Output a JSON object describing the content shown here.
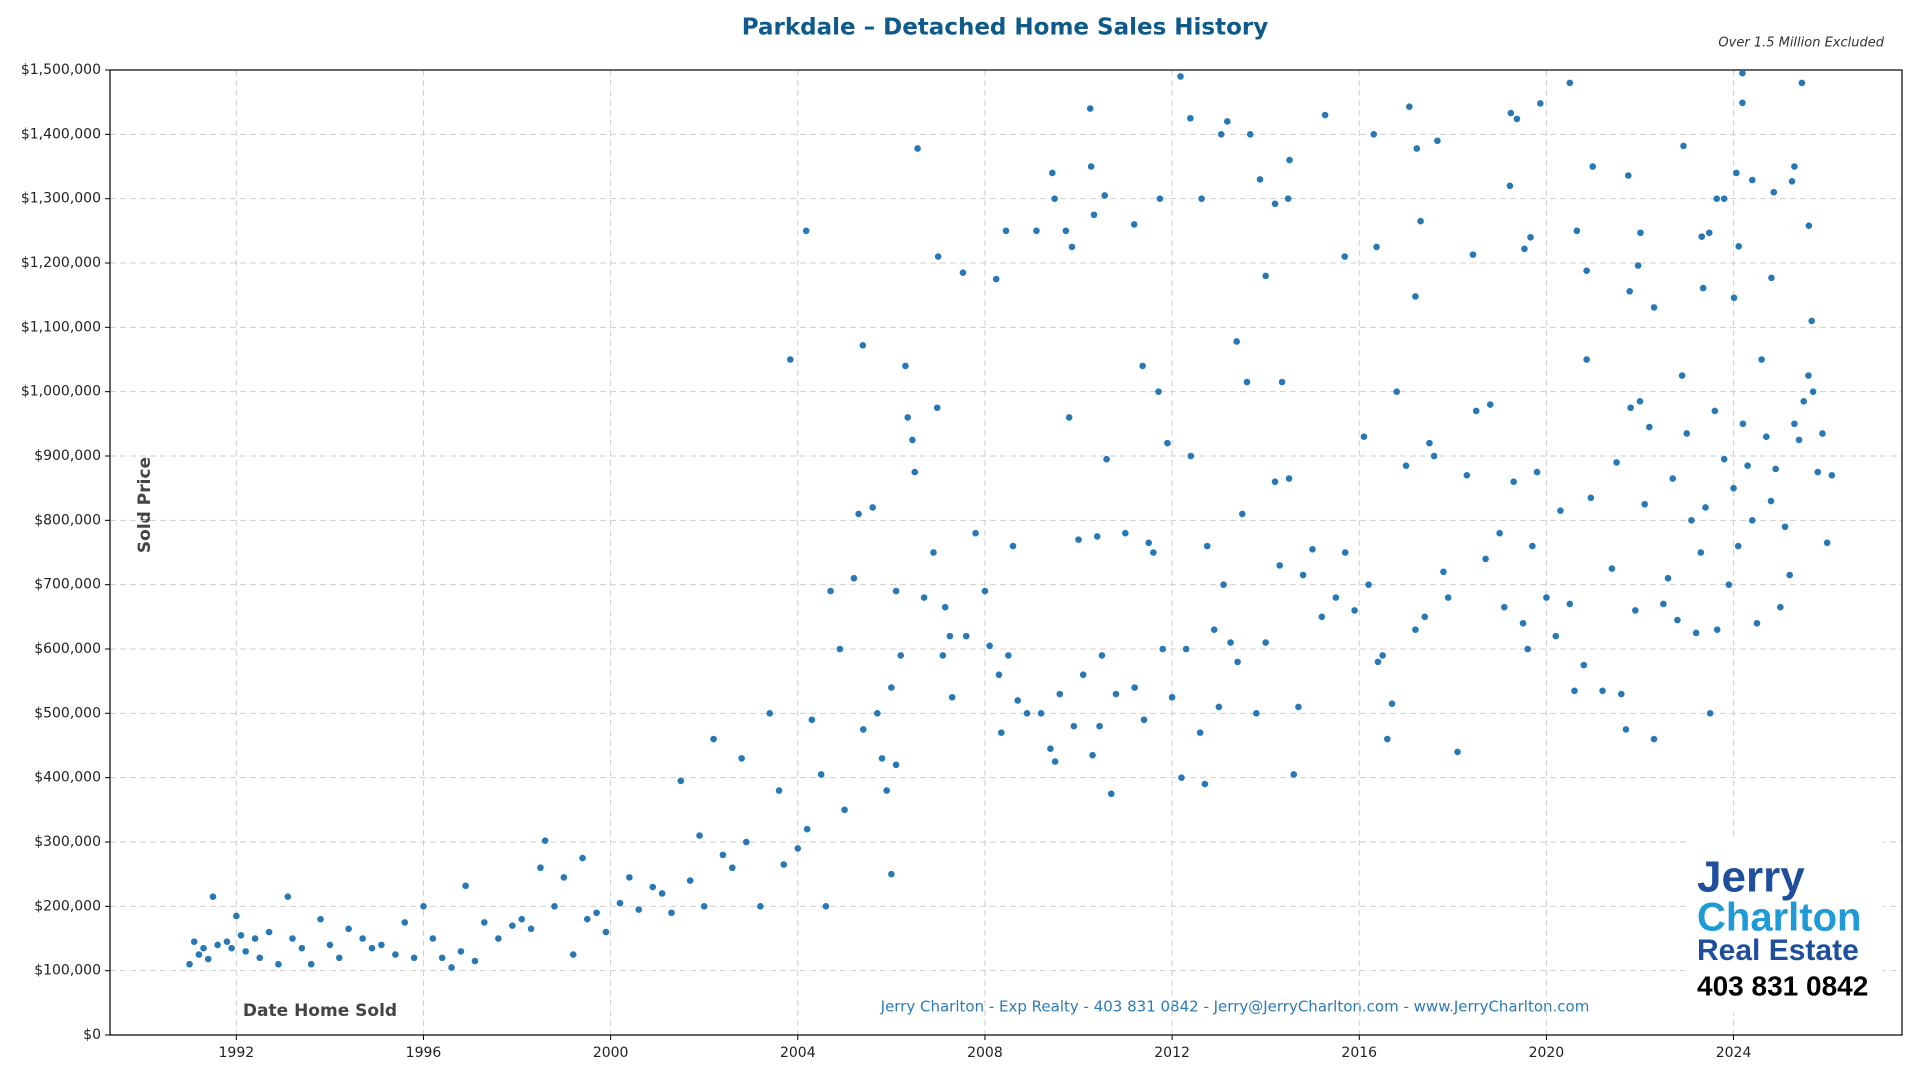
{
  "chart_data": {
    "type": "scatter",
    "title": "Parkdale – Detached Home Sales History",
    "subtitle": "Over 1.5 Million Excluded",
    "ylabel": "Sold Price",
    "xlabel": "Date Home Sold",
    "footer": "Jerry Charlton - Exp Realty - 403 831 0842 - Jerry@JerryCharlton.com - www.JerryCharlton.com",
    "logo": [
      "Jerry",
      "Charlton",
      "Real Estate",
      "403 831 0842"
    ],
    "color": "#2878b5",
    "grid": true,
    "xlim": [
      1989.3,
      2027.6
    ],
    "xticks": [
      1992,
      1996,
      2000,
      2004,
      2008,
      2012,
      2016,
      2020,
      2024
    ],
    "ylim": [
      0,
      1500000
    ],
    "yticks": [
      {
        "value": 0,
        "label": "$0"
      },
      {
        "value": 100000,
        "label": "$100,000"
      },
      {
        "value": 200000,
        "label": "$200,000"
      },
      {
        "value": 300000,
        "label": "$300,000"
      },
      {
        "value": 400000,
        "label": "$400,000"
      },
      {
        "value": 500000,
        "label": "$500,000"
      },
      {
        "value": 600000,
        "label": "$600,000"
      },
      {
        "value": 700000,
        "label": "$700,000"
      },
      {
        "value": 800000,
        "label": "$800,000"
      },
      {
        "value": 900000,
        "label": "$900,000"
      },
      {
        "value": 1000000,
        "label": "$1,000,000"
      },
      {
        "value": 1100000,
        "label": "$1,100,000"
      },
      {
        "value": 1200000,
        "label": "$1,200,000"
      },
      {
        "value": 1300000,
        "label": "$1,300,000"
      },
      {
        "value": 1400000,
        "label": "$1,400,000"
      },
      {
        "value": 1500000,
        "label": "$1,500,000"
      }
    ],
    "x": [
      1991.0,
      1991.1,
      1991.2,
      1991.3,
      1991.4,
      1991.5,
      1991.6,
      1991.8,
      1991.9,
      1992.0,
      1992.1,
      1992.2,
      1992.4,
      1992.5,
      1992.7,
      1992.9,
      1993.1,
      1993.2,
      1993.4,
      1993.6,
      1993.8,
      1994.0,
      1994.2,
      1994.4,
      1994.7,
      1994.9,
      1995.1,
      1995.4,
      1995.6,
      1995.8,
      1996.0,
      1996.2,
      1996.4,
      1996.6,
      1996.8,
      1996.9,
      1997.1,
      1997.3,
      1997.6,
      1997.9,
      1998.1,
      1998.3,
      1998.5,
      1998.6,
      1998.8,
      1999.0,
      1999.2,
      1999.4,
      1999.5,
      1999.7,
      1999.9,
      2000.2,
      2000.4,
      2000.6,
      2000.9,
      2001.1,
      2001.3,
      2001.5,
      2001.7,
      2001.9,
      2002.0,
      2002.2,
      2002.4,
      2002.6,
      2002.8,
      2002.9,
      2003.2,
      2003.4,
      2003.6,
      2003.7,
      2004.0,
      2004.2,
      2004.3,
      2004.5,
      2004.6,
      2004.7,
      2004.9,
      2005.0,
      2005.2,
      2005.4,
      2005.8,
      2005.9,
      2006.0,
      2006.1,
      2003.84,
      2004.18,
      2005.39,
      2006.3,
      2006.56,
      2007.0,
      2006.98,
      2007.53,
      2008.24,
      2008.45,
      2009.1,
      2009.44,
      2009.49,
      2009.73,
      2009.86,
      2010.25,
      2010.27,
      2010.56,
      2010.33,
      2011.19,
      2011.37,
      2011.71,
      2012.18,
      2011.74,
      2012.39,
      2012.63,
      2013.18,
      2013.05,
      2013.67,
      2013.88,
      2013.38,
      2014.0,
      2014.2,
      2014.51,
      2014.48,
      2015.27,
      2015.69,
      2016.31,
      2016.37,
      2017.07,
      2017.23,
      2017.31,
      2017.2,
      2017.67,
      2018.43,
      2019.24,
      2019.37,
      2019.22,
      2019.53,
      2019.66,
      2019.87,
      2020.5,
      2020.65,
      2020.86,
      2020.99,
      2020.86,
      2021.75,
      2022.01,
      2021.96,
      2021.78,
      2022.3,
      2022.93,
      2023.32,
      2023.48,
      2023.35,
      2023.64,
      2023.8,
      2024.19,
      2024.06,
      2024.19,
      2024.4,
      2024.11,
      2024.01,
      2024.86,
      2024.81,
      2025.3,
      2025.25,
      2025.46,
      2025.61,
      2025.67,
      2005.3,
      2005.6,
      2005.7,
      2006.0,
      2006.1,
      2006.2,
      2006.35,
      2006.45,
      2006.5,
      2006.7,
      2006.9,
      2007.1,
      2007.15,
      2007.25,
      2007.3,
      2007.6,
      2007.8,
      2008.0,
      2008.1,
      2008.3,
      2008.35,
      2008.5,
      2008.6,
      2008.7,
      2008.9,
      2009.2,
      2009.4,
      2009.5,
      2009.6,
      2009.8,
      2009.9,
      2010.0,
      2010.1,
      2010.3,
      2010.4,
      2010.45,
      2010.5,
      2010.6,
      2010.7,
      2010.8,
      2011.0,
      2011.2,
      2011.4,
      2011.5,
      2011.6,
      2011.8,
      2011.9,
      2012.0,
      2012.2,
      2012.3,
      2012.4,
      2012.6,
      2012.7,
      2012.75,
      2012.9,
      2013.0,
      2013.1,
      2013.25,
      2013.4,
      2013.5,
      2013.6,
      2013.8,
      2014.0,
      2014.2,
      2014.3,
      2014.35,
      2014.5,
      2014.6,
      2014.7,
      2014.8,
      2015.0,
      2015.2,
      2015.5,
      2015.7,
      2015.9,
      2016.1,
      2016.2,
      2016.4,
      2016.5,
      2016.6,
      2016.7,
      2016.8,
      2017.0,
      2017.2,
      2017.4,
      2017.5,
      2017.6,
      2017.8,
      2017.9,
      2018.1,
      2018.3,
      2018.5,
      2018.7,
      2018.8,
      2019.0,
      2019.1,
      2019.3,
      2019.5,
      2019.6,
      2019.7,
      2019.8,
      2020.0,
      2020.2,
      2020.3,
      2020.5,
      2020.6,
      2020.8,
      2020.95,
      2021.2,
      2021.4,
      2021.5,
      2021.6,
      2021.7,
      2021.8,
      2021.9,
      2022.0,
      2022.1,
      2022.2,
      2022.3,
      2022.5,
      2022.6,
      2022.7,
      2022.8,
      2022.9,
      2023.0,
      2023.1,
      2023.2,
      2023.3,
      2023.4,
      2023.5,
      2023.6,
      2023.65,
      2023.8,
      2023.9,
      2024.0,
      2024.1,
      2024.2,
      2024.3,
      2024.4,
      2024.5,
      2024.6,
      2024.7,
      2024.8,
      2024.9,
      2025.0,
      2025.1,
      2025.2,
      2025.3,
      2025.4,
      2025.5,
      2025.6,
      2025.7,
      2025.8,
      2025.9,
      2026.0,
      2026.1
    ],
    "values": [
      110000,
      145000,
      125000,
      135000,
      118000,
      215000,
      140000,
      145000,
      135000,
      185000,
      155000,
      130000,
      150000,
      120000,
      160000,
      110000,
      215000,
      150000,
      135000,
      110000,
      180000,
      140000,
      120000,
      165000,
      150000,
      135000,
      140000,
      125000,
      175000,
      120000,
      200000,
      150000,
      120000,
      105000,
      130000,
      232000,
      115000,
      175000,
      150000,
      170000,
      180000,
      165000,
      260000,
      302000,
      200000,
      245000,
      125000,
      275000,
      180000,
      190000,
      160000,
      205000,
      245000,
      195000,
      230000,
      220000,
      190000,
      395000,
      240000,
      310000,
      200000,
      460000,
      280000,
      260000,
      430000,
      300000,
      200000,
      500000,
      380000,
      265000,
      290000,
      320000,
      490000,
      405000,
      200000,
      690000,
      600000,
      350000,
      710000,
      475000,
      430000,
      380000,
      250000,
      420000,
      1050000,
      1250000,
      1072000,
      1040000,
      1378000,
      1210000,
      975000,
      1185000,
      1175000,
      1250000,
      1250000,
      1340000,
      1300000,
      1250000,
      1225000,
      1440000,
      1350000,
      1305000,
      1275000,
      1260000,
      1040000,
      1000000,
      1490000,
      1300000,
      1425000,
      1300000,
      1420000,
      1400000,
      1400000,
      1330000,
      1078000,
      1180000,
      1292000,
      1360000,
      1300000,
      1430000,
      1210000,
      1400000,
      1225000,
      1443000,
      1378000,
      1265000,
      1148000,
      1390000,
      1213000,
      1433000,
      1424000,
      1320000,
      1222000,
      1240000,
      1448000,
      1480000,
      1250000,
      1050000,
      1350000,
      1188000,
      1336000,
      1247000,
      1196000,
      1156000,
      1131000,
      1382000,
      1241000,
      1247000,
      1161000,
      1300000,
      1300000,
      1495000,
      1340000,
      1449000,
      1329000,
      1226000,
      1146000,
      1310000,
      1177000,
      1350000,
      1327000,
      1480000,
      1258000,
      1110000,
      810000,
      820000,
      500000,
      540000,
      690000,
      590000,
      960000,
      925000,
      875000,
      680000,
      750000,
      590000,
      665000,
      620000,
      525000,
      620000,
      780000,
      690000,
      605000,
      560000,
      470000,
      590000,
      760000,
      520000,
      500000,
      500000,
      445000,
      425000,
      530000,
      960000,
      480000,
      770000,
      560000,
      435000,
      775000,
      480000,
      590000,
      895000,
      375000,
      530000,
      780000,
      540000,
      490000,
      765000,
      750000,
      600000,
      920000,
      525000,
      400000,
      600000,
      900000,
      470000,
      390000,
      760000,
      630000,
      510000,
      700000,
      610000,
      580000,
      810000,
      1015000,
      500000,
      610000,
      860000,
      730000,
      1015000,
      865000,
      405000,
      510000,
      715000,
      755000,
      650000,
      680000,
      750000,
      660000,
      930000,
      700000,
      580000,
      590000,
      460000,
      515000,
      1000000,
      885000,
      630000,
      650000,
      920000,
      900000,
      720000,
      680000,
      440000,
      870000,
      970000,
      740000,
      980000,
      780000,
      665000,
      860000,
      640000,
      600000,
      760000,
      875000,
      680000,
      620000,
      815000,
      670000,
      535000,
      575000,
      835000,
      535000,
      725000,
      890000,
      530000,
      475000,
      975000,
      660000,
      985000,
      825000,
      945000,
      460000,
      670000,
      710000,
      865000,
      645000,
      1025000,
      935000,
      800000,
      625000,
      750000,
      820000,
      500000,
      970000,
      630000,
      895000,
      700000,
      850000,
      760000,
      950000,
      885000,
      800000,
      640000,
      1050000,
      930000,
      830000,
      880000,
      665000,
      790000,
      715000,
      950000,
      925000,
      985000,
      1025000,
      1000000,
      875000,
      935000,
      765000,
      870000
    ]
  }
}
